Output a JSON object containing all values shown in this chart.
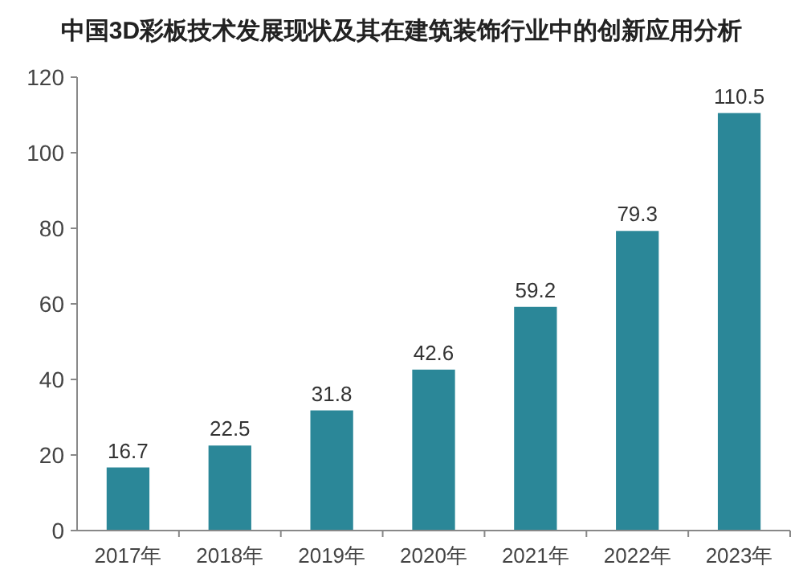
{
  "chart_data": {
    "type": "bar",
    "title": "中国3D彩板技术发展现状及其在建筑装饰行业中的创新应用分析",
    "categories": [
      "2017年",
      "2018年",
      "2019年",
      "2020年",
      "2021年",
      "2022年",
      "2023年"
    ],
    "values": [
      16.7,
      22.5,
      31.8,
      42.6,
      59.2,
      79.3,
      110.5
    ],
    "color": "#2b8798",
    "ylim": [
      0,
      120
    ],
    "yticks": [
      0,
      20,
      40,
      60,
      80,
      100,
      120
    ],
    "grid": false,
    "data_labels": true
  }
}
